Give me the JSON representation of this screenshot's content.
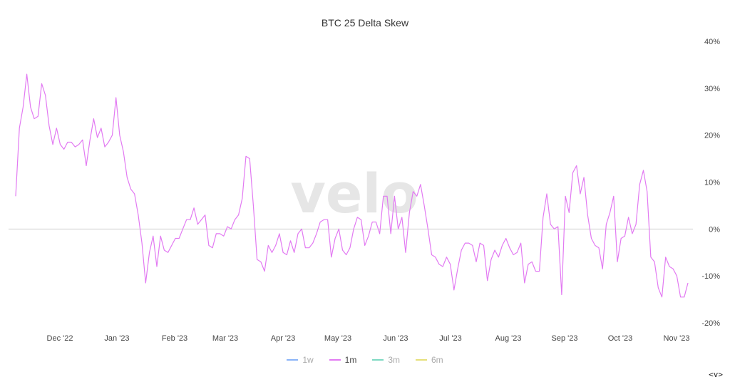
{
  "chart_data": {
    "type": "line",
    "title": "BTC 25 Delta Skew",
    "watermark": "velo",
    "ylim": [
      -20,
      40
    ],
    "yticks": [
      40,
      30,
      20,
      10,
      0,
      -10,
      -20
    ],
    "ytick_labels": [
      "40%",
      "30%",
      "20%",
      "10%",
      "0%",
      "-10%",
      "-20%"
    ],
    "xtick_labels": [
      "Dec '22",
      "Jan '23",
      "Feb '23",
      "Mar '23",
      "Apr '23",
      "May '23",
      "Jun '23",
      "Jul '23",
      "Aug '23",
      "Sep '23",
      "Oct '23",
      "Nov '23"
    ],
    "zero_line": true,
    "x_start": "2022-11-21",
    "x_step_days": 1.5,
    "series": [
      {
        "name": "1m",
        "color": "#e27af2",
        "values": [
          7,
          21.5,
          26,
          33,
          26,
          23.5,
          24,
          31,
          28.5,
          22,
          18,
          21.5,
          18,
          17,
          18.5,
          18.5,
          17.5,
          18,
          19,
          13.5,
          19,
          23.5,
          19.5,
          21.5,
          17.5,
          18.5,
          20,
          28,
          20,
          16.5,
          11,
          8.5,
          7.5,
          3,
          -3,
          -11.5,
          -5,
          -1.5,
          -8,
          -1.5,
          -4.5,
          -5,
          -3.5,
          -2,
          -2,
          0,
          2,
          2,
          4.5,
          1,
          2,
          3,
          -3.5,
          -4,
          -1,
          -1,
          -1.5,
          0.5,
          0,
          2,
          3,
          6.5,
          15.5,
          15,
          5,
          -6.5,
          -7,
          -9,
          -3.5,
          -5,
          -3.5,
          -1,
          -5,
          -5.5,
          -2.5,
          -5,
          -1,
          0,
          -4,
          -4,
          -3,
          -1,
          1.5,
          2,
          2,
          -6,
          -2,
          0,
          -4.5,
          -5.5,
          -4,
          0,
          2.5,
          2,
          -3.5,
          -1.5,
          1.5,
          1.5,
          -1,
          7,
          7,
          -1,
          7,
          0,
          2.5,
          -5,
          3.5,
          8,
          7,
          9.5,
          5,
          0,
          -5.5,
          -6,
          -7.5,
          -8,
          -6,
          -7.5,
          -13,
          -8.5,
          -4.5,
          -3,
          -3,
          -3.5,
          -7,
          -3,
          -3.5,
          -11,
          -6.5,
          -4.5,
          -6,
          -3.5,
          -2,
          -4,
          -5.5,
          -5,
          -3,
          -11.5,
          -7.5,
          -7,
          -9,
          -9,
          2.5,
          7.5,
          1,
          0,
          0.5,
          -14,
          7,
          3.5,
          12,
          13.5,
          7.5,
          11,
          3,
          -2,
          -3.5,
          -4,
          -8.5,
          1,
          3.5,
          7,
          -7,
          -2,
          -1.5,
          2.5,
          -1,
          1,
          9.5,
          12.5,
          8,
          -6,
          -7,
          -12.5,
          -14.5,
          -6,
          -8,
          -8.5,
          -10,
          -14.5,
          -14.5,
          -11.5
        ]
      }
    ],
    "legend_position": "bottom-center",
    "legend": [
      {
        "label": "1w",
        "color": "#8ab4f8",
        "active": false
      },
      {
        "label": "1m",
        "color": "#e27af2",
        "active": true
      },
      {
        "label": "3m",
        "color": "#7ed9c2",
        "active": false
      },
      {
        "label": "6m",
        "color": "#e6e07a",
        "active": false
      }
    ]
  },
  "footer": {
    "nav_label": "<v>"
  }
}
